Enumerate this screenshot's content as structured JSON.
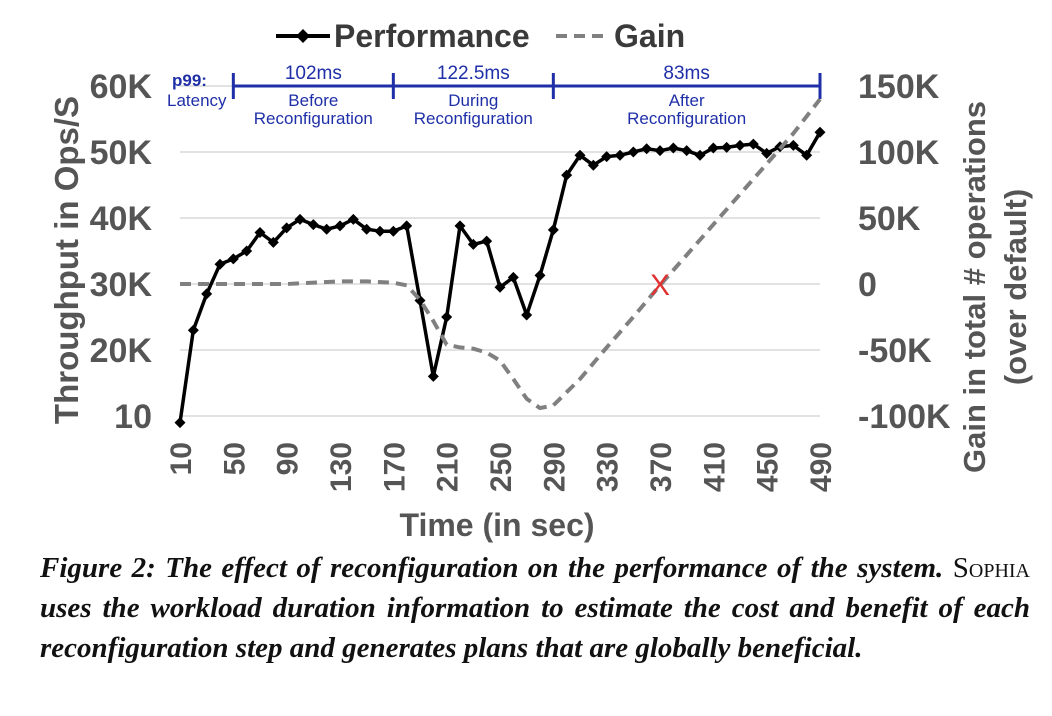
{
  "legend": {
    "performance": "Performance",
    "gain": "Gain"
  },
  "phases": {
    "prefix_line1": "p99:",
    "prefix_line2": "Latency",
    "items": [
      {
        "latency": "102ms",
        "line1": "Before",
        "line2": "Reconfiguration"
      },
      {
        "latency": "122.5ms",
        "line1": "During",
        "line2": "Reconfiguration"
      },
      {
        "latency": "83ms",
        "line1": "After",
        "line2": "Reconfiguration"
      }
    ],
    "boundaries": [
      50,
      170,
      290,
      490
    ]
  },
  "marker": {
    "symbol": "X",
    "x": 370,
    "y": 0,
    "color": "#e03030"
  },
  "chart_data": {
    "type": "line",
    "xlabel": "Time (in sec)",
    "ylabel": "Throughput in Ops/S",
    "y2label_line1": "Gain in total # operations",
    "y2label_line2": "(over default)",
    "xlim": [
      10,
      490
    ],
    "ylim": [
      10,
      60
    ],
    "y2lim": [
      -100,
      150
    ],
    "xticks": [
      "10",
      "50",
      "90",
      "130",
      "170",
      "210",
      "250",
      "290",
      "330",
      "370",
      "410",
      "450",
      "490"
    ],
    "yticks": [
      {
        "value": 10,
        "label": "10"
      },
      {
        "value": 20,
        "label": "20K"
      },
      {
        "value": 30,
        "label": "30K"
      },
      {
        "value": 40,
        "label": "40K"
      },
      {
        "value": 50,
        "label": "50K"
      },
      {
        "value": 60,
        "label": "60K"
      }
    ],
    "y2ticks": [
      {
        "value": -100,
        "label": "-100K"
      },
      {
        "value": -50,
        "label": "-50K"
      },
      {
        "value": 0,
        "label": "0"
      },
      {
        "value": 50,
        "label": "50K"
      },
      {
        "value": 100,
        "label": "100K"
      },
      {
        "value": 150,
        "label": "150K"
      }
    ],
    "grid": true,
    "legend_position": "top",
    "series": [
      {
        "name": "Performance",
        "axis": "left",
        "style": "solid-diamond",
        "color": "#000000",
        "x": [
          10,
          20,
          30,
          40,
          50,
          60,
          70,
          80,
          90,
          100,
          110,
          120,
          130,
          140,
          150,
          160,
          170,
          180,
          190,
          200,
          210,
          220,
          230,
          240,
          250,
          260,
          270,
          280,
          290,
          300,
          310,
          320,
          330,
          340,
          350,
          360,
          370,
          380,
          390,
          400,
          410,
          420,
          430,
          440,
          450,
          460,
          470,
          480,
          490
        ],
        "y": [
          9,
          23,
          28.5,
          33,
          33.8,
          35,
          37.8,
          36.3,
          38.5,
          39.8,
          39,
          38.3,
          38.8,
          39.8,
          38.3,
          38,
          38,
          38.8,
          27.5,
          16,
          25,
          38.8,
          36,
          36.5,
          29.5,
          31,
          25.3,
          31.3,
          38.2,
          46.5,
          49.5,
          48,
          49.3,
          49.5,
          50,
          50.5,
          50.2,
          50.6,
          50.2,
          49.5,
          50.6,
          50.7,
          51,
          51.2,
          49.8,
          50.8,
          51,
          49.5,
          53
        ]
      },
      {
        "name": "Gain",
        "axis": "right",
        "style": "dashed",
        "color": "#808080",
        "x": [
          10,
          50,
          90,
          130,
          150,
          170,
          180,
          190,
          200,
          210,
          220,
          230,
          240,
          250,
          260,
          270,
          280,
          290,
          310,
          330,
          350,
          370,
          390,
          410,
          430,
          450,
          470,
          490
        ],
        "y": [
          0,
          0,
          0,
          2,
          2,
          1,
          -1,
          -12,
          -28,
          -46,
          -48,
          -49,
          -52,
          -58,
          -72,
          -87,
          -94,
          -92,
          -72,
          -48,
          -25,
          -1,
          22,
          45,
          68,
          91,
          114,
          140
        ]
      }
    ]
  },
  "caption": {
    "label": "Figure 2:",
    "part1": "The effect of reconfiguration on the performance of the system.",
    "system_name": "Sophia",
    "part2": "uses the workload duration information to estimate the cost and benefit of each reconfiguration step and generates plans that are globally beneficial."
  }
}
